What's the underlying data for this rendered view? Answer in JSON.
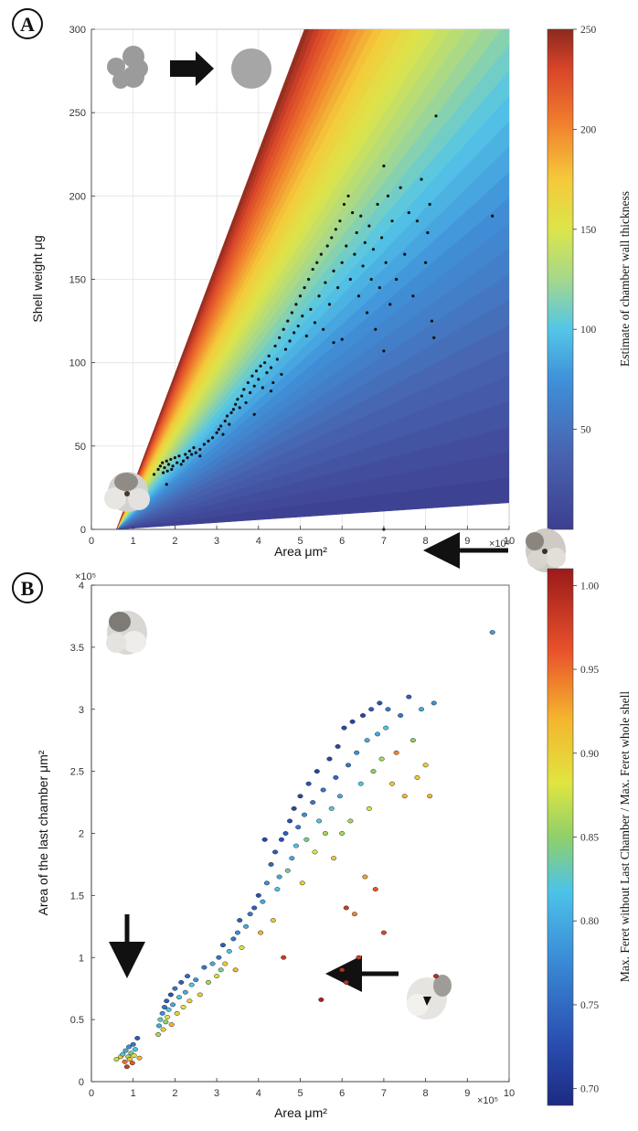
{
  "panels": {
    "a": {
      "label": "A"
    },
    "b": {
      "label": "B"
    }
  },
  "chart_data": [
    {
      "type": "scatter",
      "title": "",
      "panel": "A",
      "xlabel": "Area μm²",
      "ylabel": "Shell weight μg",
      "x_multiplier": "×10⁵",
      "xlim": [
        0,
        10
      ],
      "ylim": [
        0,
        300
      ],
      "xticks": [
        "0",
        "1",
        "2",
        "3",
        "4",
        "5",
        "6",
        "7",
        "8",
        "9",
        "10"
      ],
      "yticks": [
        "0",
        "50",
        "100",
        "150",
        "200",
        "250",
        "300"
      ],
      "grid": true,
      "colorbar": {
        "label": "Estimate of chamber wall thickness",
        "range": [
          0,
          250
        ],
        "ticks": [
          "50",
          "100",
          "150",
          "200",
          "250"
        ],
        "colormap": "parula-jet"
      },
      "background": "filled fan of estimated wall thickness: low (blue) near lower bound line, high (red) near upper bound line",
      "inset": "irregular grey shell outline → arrow → equivalent grey circle",
      "points": [
        [
          0.6,
          14
        ],
        [
          0.65,
          18
        ],
        [
          0.7,
          20
        ],
        [
          0.72,
          16
        ],
        [
          0.75,
          22
        ],
        [
          0.78,
          19
        ],
        [
          0.8,
          25
        ],
        [
          0.82,
          21
        ],
        [
          0.85,
          27
        ],
        [
          0.85,
          15
        ],
        [
          0.88,
          23
        ],
        [
          0.9,
          18
        ],
        [
          0.92,
          26
        ],
        [
          0.95,
          24
        ],
        [
          0.98,
          28
        ],
        [
          1.0,
          22
        ],
        [
          1.02,
          26
        ],
        [
          1.05,
          29
        ],
        [
          1.1,
          27
        ],
        [
          0.75,
          12
        ],
        [
          0.8,
          17
        ],
        [
          0.9,
          14
        ],
        [
          1.0,
          30
        ],
        [
          1.05,
          25
        ],
        [
          1.5,
          33
        ],
        [
          1.6,
          36
        ],
        [
          1.65,
          38
        ],
        [
          1.7,
          40
        ],
        [
          1.72,
          34
        ],
        [
          1.75,
          37
        ],
        [
          1.8,
          41
        ],
        [
          1.82,
          35
        ],
        [
          1.85,
          39
        ],
        [
          1.9,
          42
        ],
        [
          1.92,
          36
        ],
        [
          1.95,
          38
        ],
        [
          2.0,
          43
        ],
        [
          2.05,
          40
        ],
        [
          2.1,
          44
        ],
        [
          2.15,
          39
        ],
        [
          2.2,
          41
        ],
        [
          2.25,
          45
        ],
        [
          2.3,
          43
        ],
        [
          2.35,
          47
        ],
        [
          2.4,
          45
        ],
        [
          2.45,
          49
        ],
        [
          2.5,
          46
        ],
        [
          2.6,
          48
        ],
        [
          2.7,
          51
        ],
        [
          2.8,
          53
        ],
        [
          2.9,
          55
        ],
        [
          3.0,
          58
        ],
        [
          3.05,
          60
        ],
        [
          3.1,
          62
        ],
        [
          3.15,
          57
        ],
        [
          3.2,
          65
        ],
        [
          3.25,
          68
        ],
        [
          3.3,
          63
        ],
        [
          3.35,
          70
        ],
        [
          3.4,
          72
        ],
        [
          3.45,
          75
        ],
        [
          3.5,
          78
        ],
        [
          3.55,
          73
        ],
        [
          3.6,
          80
        ],
        [
          3.65,
          84
        ],
        [
          3.7,
          76
        ],
        [
          3.75,
          88
        ],
        [
          3.8,
          82
        ],
        [
          3.85,
          92
        ],
        [
          3.9,
          86
        ],
        [
          3.95,
          95
        ],
        [
          4.0,
          90
        ],
        [
          4.05,
          98
        ],
        [
          4.1,
          85
        ],
        [
          4.15,
          100
        ],
        [
          4.2,
          94
        ],
        [
          4.25,
          104
        ],
        [
          4.3,
          97
        ],
        [
          4.35,
          88
        ],
        [
          4.4,
          110
        ],
        [
          4.45,
          102
        ],
        [
          4.5,
          115
        ],
        [
          4.55,
          93
        ],
        [
          4.6,
          120
        ],
        [
          4.65,
          108
        ],
        [
          4.7,
          125
        ],
        [
          4.75,
          113
        ],
        [
          4.8,
          130
        ],
        [
          4.85,
          118
        ],
        [
          4.9,
          135
        ],
        [
          4.95,
          122
        ],
        [
          5.0,
          140
        ],
        [
          5.05,
          128
        ],
        [
          5.1,
          145
        ],
        [
          5.15,
          116
        ],
        [
          5.2,
          150
        ],
        [
          5.25,
          132
        ],
        [
          5.3,
          156
        ],
        [
          5.35,
          124
        ],
        [
          5.4,
          160
        ],
        [
          5.45,
          140
        ],
        [
          5.5,
          165
        ],
        [
          5.55,
          120
        ],
        [
          5.6,
          148
        ],
        [
          5.65,
          170
        ],
        [
          5.7,
          135
        ],
        [
          5.75,
          175
        ],
        [
          5.8,
          155
        ],
        [
          5.85,
          180
        ],
        [
          5.9,
          145
        ],
        [
          5.95,
          185
        ],
        [
          6.0,
          160
        ],
        [
          6.05,
          195
        ],
        [
          6.1,
          170
        ],
        [
          6.15,
          200
        ],
        [
          6.2,
          150
        ],
        [
          6.25,
          190
        ],
        [
          6.3,
          165
        ],
        [
          6.35,
          178
        ],
        [
          6.4,
          140
        ],
        [
          6.45,
          188
        ],
        [
          6.5,
          158
        ],
        [
          6.55,
          172
        ],
        [
          6.6,
          130
        ],
        [
          6.65,
          182
        ],
        [
          6.7,
          150
        ],
        [
          6.75,
          168
        ],
        [
          6.8,
          120
        ],
        [
          6.85,
          195
        ],
        [
          6.9,
          145
        ],
        [
          6.95,
          175
        ],
        [
          7.0,
          218
        ],
        [
          7.05,
          160
        ],
        [
          7.1,
          200
        ],
        [
          7.15,
          135
        ],
        [
          7.2,
          185
        ],
        [
          7.3,
          150
        ],
        [
          7.4,
          205
        ],
        [
          7.5,
          165
        ],
        [
          7.6,
          190
        ],
        [
          7.7,
          140
        ],
        [
          7.8,
          185
        ],
        [
          7.9,
          210
        ],
        [
          8.0,
          160
        ],
        [
          8.05,
          178
        ],
        [
          8.1,
          195
        ],
        [
          8.15,
          125
        ],
        [
          8.2,
          115
        ],
        [
          8.25,
          248
        ],
        [
          9.6,
          188
        ],
        [
          7.0,
          107
        ],
        [
          6.0,
          114
        ],
        [
          5.8,
          112
        ],
        [
          4.3,
          83
        ],
        [
          3.9,
          69
        ],
        [
          2.6,
          44
        ],
        [
          1.8,
          27
        ],
        [
          7.0,
          0
        ]
      ]
    },
    {
      "type": "scatter",
      "title": "",
      "panel": "B",
      "xlabel": "Area μm²",
      "ylabel": "Area of the last chamber μm²",
      "x_multiplier": "×10⁵",
      "y_multiplier": "×10⁵",
      "xlim": [
        0,
        10
      ],
      "ylim": [
        0,
        4
      ],
      "xticks": [
        "0",
        "1",
        "2",
        "3",
        "4",
        "5",
        "6",
        "7",
        "8",
        "9",
        "10"
      ],
      "yticks": [
        "0",
        "0.5",
        "1",
        "1.5",
        "2",
        "2.5",
        "3",
        "3.5",
        "4"
      ],
      "grid": false,
      "colorbar": {
        "label": "Max. Feret without Last Chamber / Max. Feret whole shell",
        "range": [
          0.69,
          1.01
        ],
        "ticks": [
          "0.70",
          "0.75",
          "0.80",
          "0.85",
          "0.90",
          "0.95",
          "1.00"
        ],
        "colormap": "jet"
      },
      "inset_arrows": [
        "down arrow from shell photos to cluster at ~0.9",
        "left arrow to point near (6.1, 1.4)",
        "left arrow to point near (5.5, 0.66)"
      ],
      "points": [
        [
          0.6,
          0.18,
          0.87
        ],
        [
          0.7,
          0.2,
          0.9
        ],
        [
          0.75,
          0.22,
          0.82
        ],
        [
          0.8,
          0.16,
          0.95
        ],
        [
          0.82,
          0.25,
          0.8
        ],
        [
          0.85,
          0.12,
          0.98
        ],
        [
          0.88,
          0.2,
          0.86
        ],
        [
          0.9,
          0.28,
          0.78
        ],
        [
          0.92,
          0.18,
          0.91
        ],
        [
          0.95,
          0.23,
          0.84
        ],
        [
          0.98,
          0.15,
          0.96
        ],
        [
          1.0,
          0.3,
          0.76
        ],
        [
          1.02,
          0.21,
          0.88
        ],
        [
          1.05,
          0.26,
          0.82
        ],
        [
          1.1,
          0.35,
          0.74
        ],
        [
          1.15,
          0.19,
          0.92
        ],
        [
          1.6,
          0.38,
          0.86
        ],
        [
          1.62,
          0.45,
          0.8
        ],
        [
          1.65,
          0.5,
          0.83
        ],
        [
          1.7,
          0.55,
          0.78
        ],
        [
          1.72,
          0.42,
          0.9
        ],
        [
          1.75,
          0.6,
          0.76
        ],
        [
          1.78,
          0.48,
          0.85
        ],
        [
          1.8,
          0.65,
          0.74
        ],
        [
          1.82,
          0.52,
          0.88
        ],
        [
          1.85,
          0.58,
          0.82
        ],
        [
          1.9,
          0.7,
          0.73
        ],
        [
          1.92,
          0.46,
          0.92
        ],
        [
          1.95,
          0.62,
          0.8
        ],
        [
          2.0,
          0.75,
          0.76
        ],
        [
          2.05,
          0.55,
          0.9
        ],
        [
          2.1,
          0.68,
          0.82
        ],
        [
          2.15,
          0.8,
          0.74
        ],
        [
          2.2,
          0.6,
          0.88
        ],
        [
          2.25,
          0.72,
          0.8
        ],
        [
          2.3,
          0.85,
          0.75
        ],
        [
          2.35,
          0.65,
          0.9
        ],
        [
          2.4,
          0.78,
          0.82
        ],
        [
          2.5,
          0.82,
          0.78
        ],
        [
          2.6,
          0.7,
          0.9
        ],
        [
          2.7,
          0.92,
          0.76
        ],
        [
          2.8,
          0.8,
          0.86
        ],
        [
          2.9,
          0.95,
          0.8
        ],
        [
          3.0,
          0.85,
          0.88
        ],
        [
          3.05,
          1.0,
          0.76
        ],
        [
          3.1,
          0.9,
          0.84
        ],
        [
          3.15,
          1.1,
          0.74
        ],
        [
          3.2,
          0.95,
          0.9
        ],
        [
          3.3,
          1.05,
          0.82
        ],
        [
          3.4,
          1.15,
          0.76
        ],
        [
          3.45,
          0.9,
          0.92
        ],
        [
          3.5,
          1.2,
          0.78
        ],
        [
          3.55,
          1.3,
          0.74
        ],
        [
          3.6,
          1.08,
          0.88
        ],
        [
          3.7,
          1.25,
          0.8
        ],
        [
          3.8,
          1.35,
          0.76
        ],
        [
          3.9,
          1.4,
          0.74
        ],
        [
          4.0,
          1.5,
          0.73
        ],
        [
          4.05,
          1.2,
          0.92
        ],
        [
          4.1,
          1.45,
          0.8
        ],
        [
          4.15,
          1.95,
          0.72
        ],
        [
          4.2,
          1.6,
          0.78
        ],
        [
          4.3,
          1.75,
          0.75
        ],
        [
          4.35,
          1.3,
          0.9
        ],
        [
          4.4,
          1.85,
          0.74
        ],
        [
          4.45,
          1.55,
          0.82
        ],
        [
          4.5,
          1.65,
          0.8
        ],
        [
          4.55,
          1.95,
          0.73
        ],
        [
          4.6,
          1.0,
          0.98
        ],
        [
          4.65,
          2.0,
          0.74
        ],
        [
          4.7,
          1.7,
          0.84
        ],
        [
          4.75,
          2.1,
          0.73
        ],
        [
          4.8,
          1.8,
          0.8
        ],
        [
          4.85,
          2.2,
          0.72
        ],
        [
          4.9,
          1.9,
          0.82
        ],
        [
          4.95,
          2.05,
          0.76
        ],
        [
          5.0,
          2.3,
          0.72
        ],
        [
          5.05,
          1.6,
          0.9
        ],
        [
          5.1,
          2.15,
          0.78
        ],
        [
          5.15,
          1.95,
          0.84
        ],
        [
          5.2,
          2.4,
          0.73
        ],
        [
          5.3,
          2.25,
          0.76
        ],
        [
          5.35,
          1.85,
          0.88
        ],
        [
          5.4,
          2.5,
          0.72
        ],
        [
          5.45,
          2.1,
          0.82
        ],
        [
          5.5,
          0.66,
          1.0
        ],
        [
          5.55,
          2.35,
          0.76
        ],
        [
          5.6,
          2.0,
          0.86
        ],
        [
          5.7,
          2.6,
          0.72
        ],
        [
          5.75,
          2.2,
          0.82
        ],
        [
          5.8,
          1.8,
          0.9
        ],
        [
          5.85,
          2.45,
          0.75
        ],
        [
          5.9,
          2.7,
          0.72
        ],
        [
          5.95,
          2.3,
          0.8
        ],
        [
          6.0,
          0.9,
          0.99
        ],
        [
          6.05,
          2.85,
          0.72
        ],
        [
          6.1,
          1.4,
          0.98
        ],
        [
          6.15,
          2.55,
          0.76
        ],
        [
          6.2,
          2.1,
          0.86
        ],
        [
          6.25,
          2.9,
          0.72
        ],
        [
          6.3,
          1.35,
          0.94
        ],
        [
          6.35,
          2.65,
          0.78
        ],
        [
          6.4,
          1.0,
          0.98
        ],
        [
          6.45,
          2.4,
          0.82
        ],
        [
          6.5,
          2.95,
          0.72
        ],
        [
          6.55,
          1.65,
          0.93
        ],
        [
          6.6,
          2.75,
          0.8
        ],
        [
          6.65,
          2.2,
          0.88
        ],
        [
          6.7,
          3.0,
          0.74
        ],
        [
          6.75,
          2.5,
          0.85
        ],
        [
          6.8,
          1.55,
          0.96
        ],
        [
          6.85,
          2.8,
          0.8
        ],
        [
          6.9,
          3.05,
          0.73
        ],
        [
          6.95,
          2.6,
          0.86
        ],
        [
          7.0,
          1.2,
          0.97
        ],
        [
          7.05,
          2.85,
          0.82
        ],
        [
          7.1,
          3.0,
          0.76
        ],
        [
          7.2,
          2.4,
          0.9
        ],
        [
          7.3,
          2.65,
          0.94
        ],
        [
          7.4,
          2.95,
          0.76
        ],
        [
          7.5,
          2.3,
          0.92
        ],
        [
          7.6,
          3.1,
          0.74
        ],
        [
          7.7,
          2.75,
          0.85
        ],
        [
          7.8,
          2.45,
          0.9
        ],
        [
          7.9,
          3.0,
          0.8
        ],
        [
          8.0,
          2.55,
          0.9
        ],
        [
          8.1,
          2.3,
          0.92
        ],
        [
          8.2,
          3.05,
          0.78
        ],
        [
          8.25,
          0.85,
          0.99
        ],
        [
          9.6,
          3.62,
          0.79
        ],
        [
          6.1,
          0.8,
          0.99
        ],
        [
          6.0,
          2.0,
          0.86
        ]
      ]
    }
  ]
}
